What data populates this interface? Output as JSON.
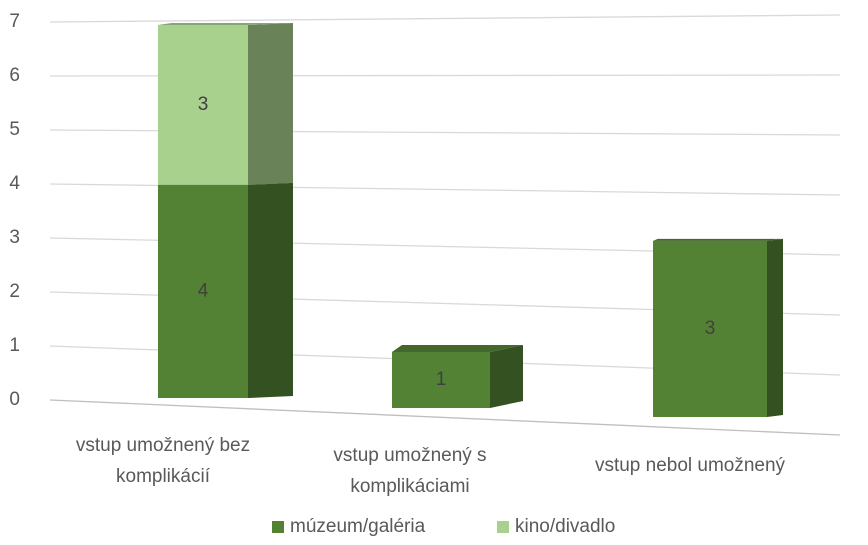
{
  "chart_data": {
    "type": "bar3d_stacked",
    "categories": [
      "vstup umožnený bez komplikácií",
      "vstup umožnený s komplikáciami",
      "vstup nebol umožnený"
    ],
    "series": [
      {
        "name": "múzeum/galéria",
        "color": "#548235",
        "values": [
          4,
          1,
          3
        ]
      },
      {
        "name": "kino/divadlo",
        "color": "#a9d18e",
        "values": [
          3,
          0,
          0
        ]
      }
    ],
    "ylim": [
      0,
      7
    ],
    "yticks": [
      0,
      1,
      2,
      3,
      4,
      5,
      6,
      7
    ],
    "grid": true,
    "legend": "bottom"
  }
}
